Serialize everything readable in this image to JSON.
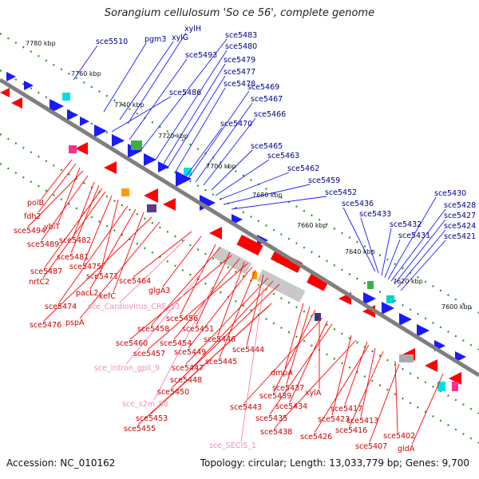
{
  "title": "Sorangium cellulosum 'So ce 56', complete genome",
  "footer": {
    "accession": "Accession: NC_010162",
    "summary": "Topology: circular; Length: 13,033,779 bp; Genes: 9,700"
  },
  "colors": {
    "forward_strand": "#1a1aff",
    "reverse_strand": "#ff0000",
    "rna_feature": "#ff80b0",
    "backbone": "#808080",
    "ruler_dots": "#229922"
  },
  "kbp_ticks": [
    "7780 kbp",
    "7760 kbp",
    "7740 kbp",
    "7720 kbp",
    "7700 kbp",
    "7680 kbp",
    "7660 kbp",
    "7640 kbp",
    "7620 kbp",
    "7600 kbp"
  ],
  "top_labels": [
    "sce5510",
    "pgm3",
    "xylG",
    "xylH",
    "sce5493",
    "sce5483",
    "sce5480",
    "sce5479",
    "sce5477",
    "sce5478",
    "sce5486",
    "sce5469",
    "sce5467",
    "sce5466",
    "sce5470",
    "sce5465",
    "sce5463",
    "sce5462",
    "sce5459",
    "sce5452",
    "sce5436",
    "sce5433",
    "sce5432",
    "sce5431",
    "sce5430",
    "sce5428",
    "sce5427",
    "sce5424",
    "sce5421"
  ],
  "bottom_labels": [
    "polB",
    "fdh2",
    "ybiT",
    "sce5494",
    "sce5489",
    "sce5482",
    "sce5481",
    "sce5487",
    "nrtC2",
    "sce5475",
    "sce5471",
    "sce5474",
    "pacL2",
    "kefC",
    "sce5476",
    "pspA",
    "sce5464",
    "glgA3",
    "sce5456",
    "sce5458",
    "sce5451",
    "sce5460",
    "sce5454",
    "sce5446",
    "sce5457",
    "sce5449",
    "sce5445",
    "sce5444",
    "sce5447",
    "sce5448",
    "sce5450",
    "dmpA",
    "sce5437",
    "sce5439",
    "xylA",
    "sce5443",
    "sce5434",
    "sce5435",
    "sce5423",
    "sce5438",
    "sce5417",
    "sce5426",
    "sce5413",
    "sce5416",
    "sce5402",
    "sce5407",
    "sce5453",
    "sce5455",
    "gldA"
  ],
  "rna_labels": [
    "sce_Cardiovirus_CRE_13",
    "sce_Intron_gpII_9",
    "sce_s2m_88",
    "sce_SECIS_1"
  ]
}
